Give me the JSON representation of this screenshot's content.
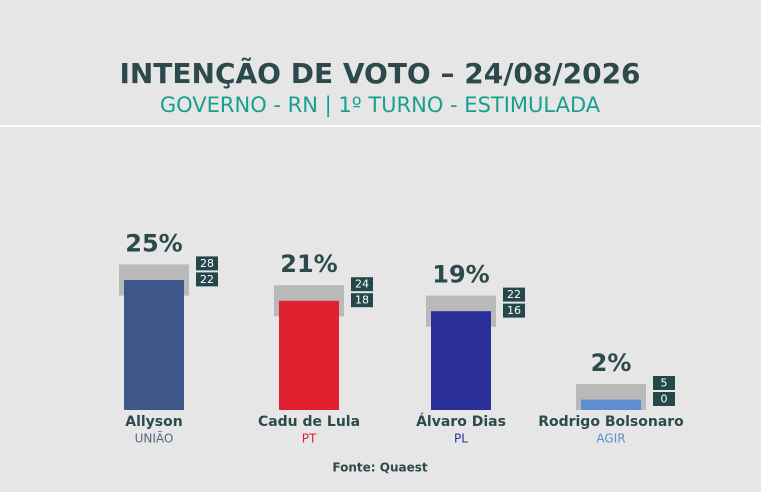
{
  "chart_data": {
    "type": "bar",
    "title": "INTENÇÃO DE VOTO – 24/08/2026",
    "subtitle": "GOVERNO - RN | 1º TURNO - ESTIMULADA",
    "categories": [
      "Allyson",
      "Cadu de Lula",
      "Álvaro Dias",
      "Rodrigo Bolsonaro"
    ],
    "parties": [
      "UNIÃO",
      "PT",
      "PL",
      "AGIR"
    ],
    "values": [
      25,
      21,
      19,
      2
    ],
    "value_labels": [
      "25%",
      "21%",
      "19%",
      "2%"
    ],
    "upper": [
      28,
      24,
      22,
      5
    ],
    "lower": [
      22,
      18,
      16,
      0
    ],
    "colors": [
      "#3f5788",
      "#e0202f",
      "#2a2f98",
      "#5b8fd2"
    ],
    "party_colors": [
      "#56657e",
      "#e0202f",
      "#2a2f98",
      "#5b8fd2"
    ],
    "ylim": [
      0,
      30
    ],
    "source": "Fonte: Quaest"
  }
}
